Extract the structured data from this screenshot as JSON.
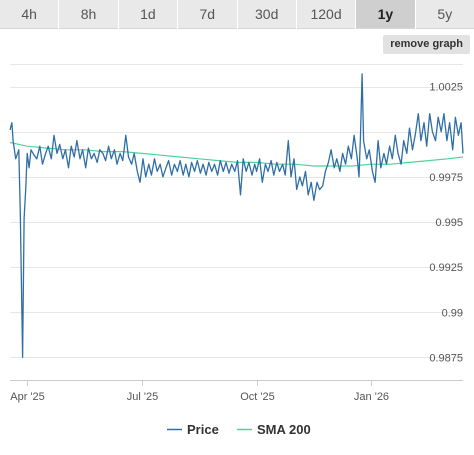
{
  "tabs": [
    {
      "label": "4h",
      "active": false
    },
    {
      "label": "8h",
      "active": false
    },
    {
      "label": "1d",
      "active": false
    },
    {
      "label": "7d",
      "active": false
    },
    {
      "label": "30d",
      "active": false
    },
    {
      "label": "120d",
      "active": false
    },
    {
      "label": "1y",
      "active": true
    },
    {
      "label": "5y",
      "active": false
    }
  ],
  "remove_graph_label": "remove graph",
  "colors": {
    "price": "#2f6ea6",
    "sma": "#4fd39a",
    "grid": "#e6e6e6"
  },
  "chart_data": {
    "type": "line",
    "title": "",
    "xlabel": "",
    "ylabel": "",
    "ylim": [
      0.98625,
      1.00375
    ],
    "y_ticks": [
      1.0025,
      0.9975,
      0.995,
      0.9925,
      0.99,
      0.9875
    ],
    "y_tick_labels": [
      "1.0025",
      "0.9975",
      "0.995",
      "0.9925",
      "0.99",
      "0.9875"
    ],
    "grid_y": [
      1.0025,
      1.0,
      0.9975,
      0.995,
      0.9925,
      0.99,
      0.9875
    ],
    "x_tick_labels": [
      "Apr '25",
      "Jul '25",
      "Oct '25",
      "Jan '26"
    ],
    "x_ticks_month_index": [
      1,
      4,
      7,
      10
    ],
    "x_range_month_index": [
      0.55,
      12.4
    ],
    "legend_position": "bottom-center",
    "series": [
      {
        "name": "Price",
        "month_index": [
          0.55,
          0.6,
          0.63,
          0.7,
          0.78,
          0.82,
          0.88,
          0.92,
          0.96,
          1.0,
          1.05,
          1.1,
          1.18,
          1.25,
          1.33,
          1.4,
          1.48,
          1.55,
          1.63,
          1.7,
          1.78,
          1.85,
          1.93,
          2.0,
          2.08,
          2.15,
          2.23,
          2.3,
          2.38,
          2.45,
          2.53,
          2.6,
          2.68,
          2.75,
          2.83,
          2.9,
          2.98,
          3.05,
          3.13,
          3.2,
          3.28,
          3.35,
          3.43,
          3.5,
          3.58,
          3.65,
          3.73,
          3.8,
          3.88,
          3.95,
          4.03,
          4.1,
          4.18,
          4.25,
          4.33,
          4.4,
          4.48,
          4.55,
          4.63,
          4.7,
          4.78,
          4.85,
          4.93,
          5.0,
          5.08,
          5.15,
          5.23,
          5.3,
          5.38,
          5.45,
          5.53,
          5.6,
          5.68,
          5.75,
          5.83,
          5.9,
          5.98,
          6.05,
          6.13,
          6.2,
          6.28,
          6.35,
          6.43,
          6.5,
          6.58,
          6.65,
          6.73,
          6.8,
          6.88,
          6.95,
          7.0,
          7.08,
          7.15,
          7.23,
          7.3,
          7.38,
          7.45,
          7.53,
          7.6,
          7.68,
          7.75,
          7.83,
          7.9,
          7.98,
          8.05,
          8.13,
          8.2,
          8.28,
          8.35,
          8.43,
          8.5,
          8.58,
          8.65,
          8.73,
          8.8,
          8.88,
          8.95,
          9.03,
          9.1,
          9.18,
          9.25,
          9.33,
          9.4,
          9.48,
          9.55,
          9.63,
          9.68,
          9.72,
          9.76,
          9.8,
          9.88,
          9.95,
          10.03,
          10.1,
          10.18,
          10.25,
          10.33,
          10.4,
          10.48,
          10.55,
          10.63,
          10.7,
          10.78,
          10.85,
          10.93,
          11.0,
          11.08,
          11.15,
          11.23,
          11.3,
          11.38,
          11.45,
          11.53,
          11.6,
          11.68,
          11.75,
          11.83,
          11.9,
          11.98,
          12.05,
          12.13,
          12.2,
          12.28,
          12.35,
          12.4
        ],
        "values": [
          1.0001,
          1.0005,
          0.9995,
          0.9985,
          0.999,
          0.9955,
          0.9875,
          0.9952,
          0.9968,
          0.9988,
          0.998,
          0.999,
          0.9987,
          0.9985,
          0.9992,
          0.9982,
          0.9988,
          0.9992,
          0.9985,
          0.9998,
          0.9988,
          0.9993,
          0.9985,
          0.999,
          0.998,
          0.9992,
          0.9986,
          0.9995,
          0.9985,
          0.999,
          0.998,
          0.9991,
          0.9985,
          0.9988,
          0.9983,
          0.999,
          0.9988,
          0.9984,
          0.9992,
          0.9985,
          0.999,
          0.9982,
          0.9988,
          0.9984,
          0.9998,
          0.9986,
          0.9982,
          0.9988,
          0.9978,
          0.9972,
          0.9985,
          0.9975,
          0.9982,
          0.9976,
          0.9985,
          0.9978,
          0.9982,
          0.9975,
          0.998,
          0.9984,
          0.9976,
          0.9982,
          0.9978,
          0.9984,
          0.9976,
          0.9982,
          0.9975,
          0.9983,
          0.9978,
          0.9984,
          0.9977,
          0.9982,
          0.9976,
          0.9983,
          0.9978,
          0.9982,
          0.9976,
          0.9984,
          0.9978,
          0.9983,
          0.9977,
          0.9982,
          0.9978,
          0.9984,
          0.9965,
          0.9985,
          0.9978,
          0.9983,
          0.9976,
          0.9982,
          0.9978,
          0.9985,
          0.9972,
          0.9982,
          0.9978,
          0.9984,
          0.9976,
          0.9983,
          0.9978,
          0.9982,
          0.9976,
          0.9995,
          0.9975,
          0.9985,
          0.9968,
          0.9975,
          0.997,
          0.9978,
          0.9965,
          0.9972,
          0.9962,
          0.9972,
          0.9968,
          0.997,
          0.9978,
          0.9983,
          0.999,
          0.998,
          0.9985,
          0.9978,
          0.9988,
          0.9982,
          0.9992,
          0.9985,
          0.9998,
          0.9986,
          0.9975,
          0.9998,
          1.0032,
          0.9995,
          0.9985,
          0.999,
          0.9978,
          0.9972,
          0.9995,
          0.998,
          0.9988,
          0.9982,
          0.9992,
          0.9985,
          0.9998,
          0.9988,
          0.9982,
          0.9995,
          0.9988,
          1.0002,
          0.999,
          0.9998,
          1.001,
          0.9995,
          1.0005,
          0.9992,
          1.001,
          1.0,
          0.9995,
          1.0008,
          1.0,
          1.001,
          0.9995,
          1.0005,
          0.999,
          1.0008,
          0.9998,
          1.0005,
          0.9988
        ]
      },
      {
        "name": "SMA 200",
        "month_index": [
          0.55,
          1.0,
          1.5,
          2.0,
          2.5,
          3.0,
          3.5,
          4.0,
          4.5,
          5.0,
          5.5,
          6.0,
          6.5,
          7.0,
          7.5,
          8.0,
          8.5,
          9.0,
          9.5,
          10.0,
          10.5,
          11.0,
          11.5,
          12.0,
          12.4
        ],
        "values": [
          0.9994,
          0.9992,
          0.9991,
          0.999,
          0.999,
          0.9989,
          0.9989,
          0.9988,
          0.9987,
          0.9986,
          0.9985,
          0.9984,
          0.9983,
          0.9983,
          0.9982,
          0.9982,
          0.9981,
          0.9981,
          0.9981,
          0.9982,
          0.9982,
          0.9983,
          0.9984,
          0.9985,
          0.9986
        ]
      }
    ]
  }
}
